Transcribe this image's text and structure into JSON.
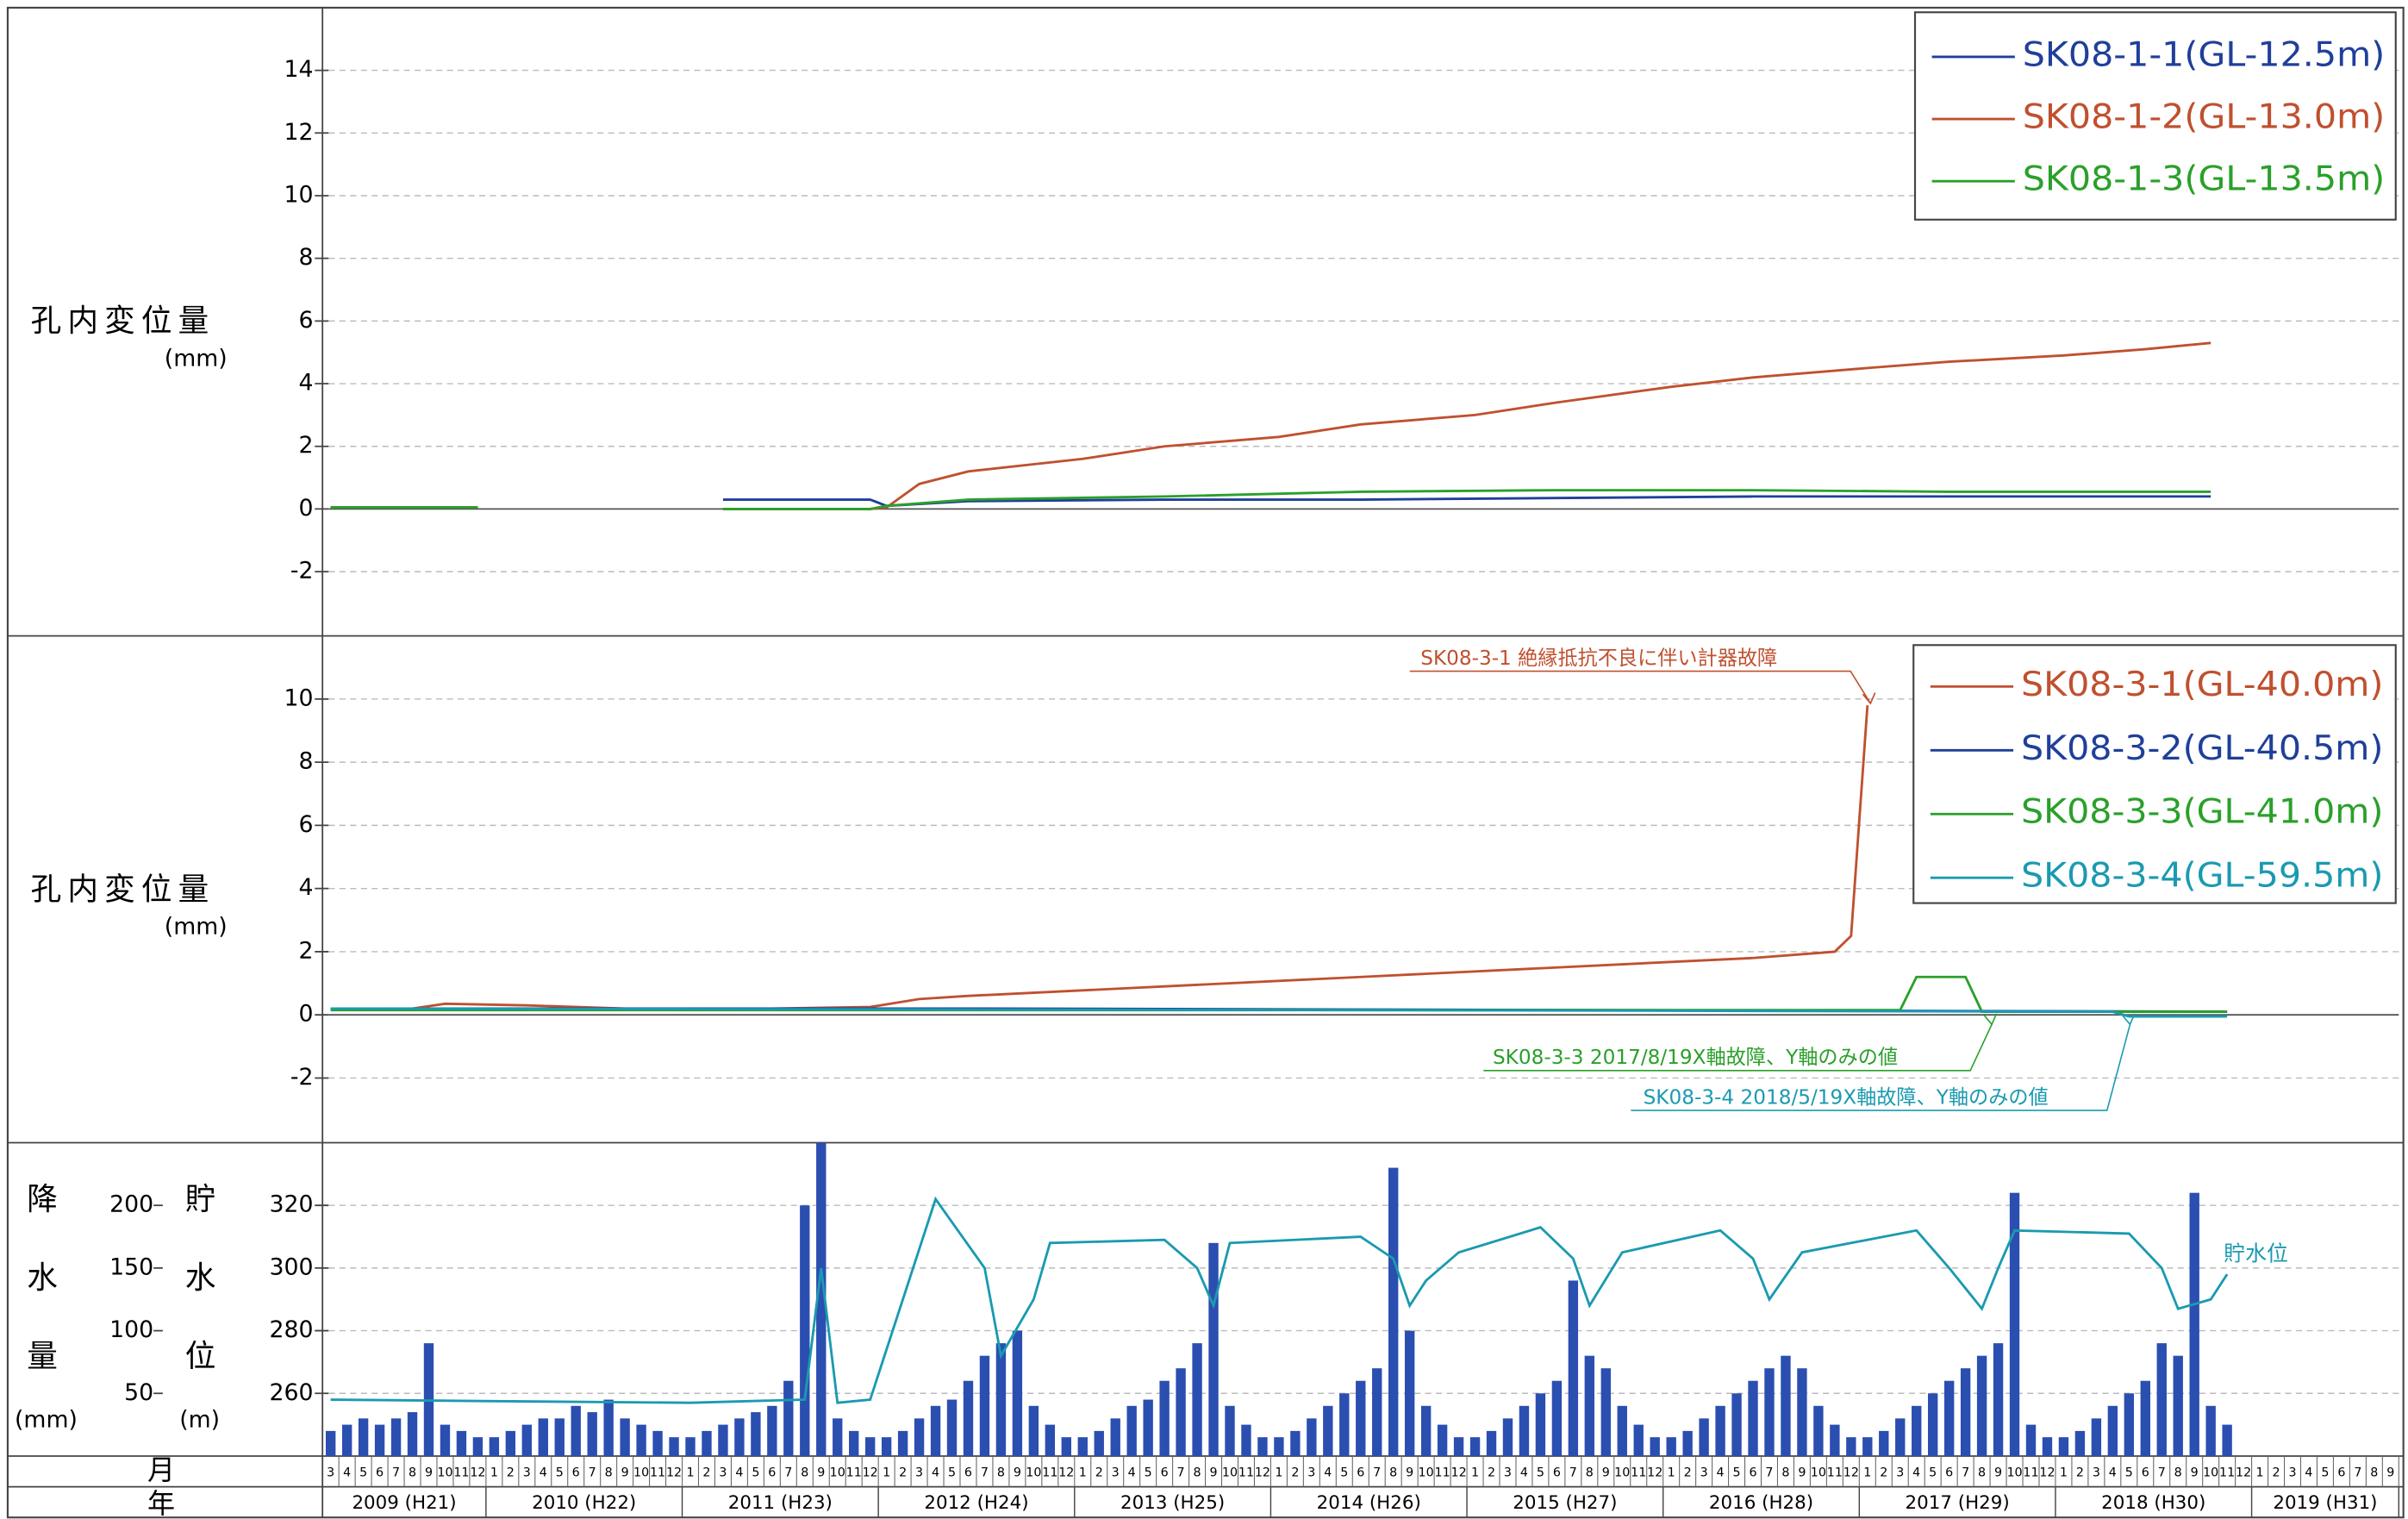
{
  "chart_data": [
    {
      "type": "line",
      "ylabel": "孔内変位量",
      "yunit": "(mm)",
      "ylim": [
        -4,
        16
      ],
      "yticks": [
        -2,
        0,
        2,
        4,
        6,
        8,
        10,
        12,
        14
      ],
      "series": [
        {
          "name": "SK08-1-1(GL-12.5m)",
          "color": "#1f3f9a",
          "x": [
            "2009-03",
            "2009-12",
            "2010-06",
            "2011-03",
            "2011-12",
            "2012-01",
            "2012-06",
            "2013-06",
            "2014-06",
            "2015-06",
            "2016-06",
            "2017-06",
            "2018-10"
          ],
          "values": [
            0.05,
            0.05,
            null,
            0.3,
            0.3,
            0.1,
            0.25,
            0.3,
            0.3,
            0.35,
            0.4,
            0.4,
            0.4
          ]
        },
        {
          "name": "SK08-1-2(GL-13.0m)",
          "color": "#c0502f",
          "x": [
            "2009-03",
            "2009-12",
            "2010-06",
            "2011-03",
            "2011-12",
            "2012-01",
            "2012-03",
            "2012-06",
            "2013-01",
            "2013-06",
            "2014-01",
            "2014-06",
            "2015-01",
            "2015-06",
            "2016-01",
            "2016-06",
            "2017-01",
            "2017-06",
            "2018-01",
            "2018-06",
            "2018-10"
          ],
          "values": [
            0.05,
            0.05,
            null,
            0,
            0,
            0.05,
            0.8,
            1.2,
            1.6,
            2.0,
            2.3,
            2.7,
            3.0,
            3.4,
            3.9,
            4.2,
            4.5,
            4.7,
            4.9,
            5.1,
            5.3
          ]
        },
        {
          "name": "SK08-1-3(GL-13.5m)",
          "color": "#2aa02a",
          "x": [
            "2009-03",
            "2009-12",
            "2010-06",
            "2011-03",
            "2011-12",
            "2012-01",
            "2012-06",
            "2013-06",
            "2014-06",
            "2015-06",
            "2016-06",
            "2017-06",
            "2018-10"
          ],
          "values": [
            0.05,
            0.05,
            null,
            0,
            0,
            0.1,
            0.3,
            0.4,
            0.55,
            0.6,
            0.6,
            0.55,
            0.55
          ]
        }
      ]
    },
    {
      "type": "line",
      "ylabel": "孔内変位量",
      "yunit": "(mm)",
      "ylim": [
        -4,
        12
      ],
      "yticks": [
        -2,
        0,
        2,
        4,
        6,
        8,
        10
      ],
      "series": [
        {
          "name": "SK08-3-1(GL-40.0m)",
          "color": "#c0502f",
          "x": [
            "2009-03",
            "2009-08",
            "2009-10",
            "2010-03",
            "2010-09",
            "2011-06",
            "2011-12",
            "2012-03",
            "2012-06",
            "2013-06",
            "2014-06",
            "2015-06",
            "2016-06",
            "2016-11",
            "2016-12",
            "2017-01"
          ],
          "values": [
            0.2,
            0.2,
            0.35,
            0.3,
            0.2,
            0.2,
            0.25,
            0.5,
            0.6,
            0.9,
            1.2,
            1.5,
            1.8,
            2.0,
            2.5,
            9.8
          ]
        },
        {
          "name": "SK08-3-2(GL-40.5m)",
          "color": "#1f3f9a",
          "x": [
            "2009-03",
            "2012-06",
            "2018-11"
          ],
          "values": [
            0.2,
            0.2,
            0.1
          ]
        },
        {
          "name": "SK08-3-3(GL-41.0m)",
          "color": "#2aa02a",
          "x": [
            "2009-03",
            "2017-03",
            "2017-04",
            "2017-07",
            "2017-08",
            "2018-11"
          ],
          "values": [
            0.15,
            0.15,
            1.2,
            1.2,
            0.1,
            0.1
          ]
        },
        {
          "name": "SK08-3-4(GL-59.5m)",
          "color": "#1a9ab0",
          "x": [
            "2009-03",
            "2014-06",
            "2018-04",
            "2018-05",
            "2018-11"
          ],
          "values": [
            0.2,
            0.15,
            0.1,
            -0.05,
            -0.05
          ]
        }
      ],
      "annotations": [
        {
          "text": "SK08-3-1 絶縁抵抗不良に伴い計器故障",
          "color": "#c0502f"
        },
        {
          "text": "SK08-3-3 2017/8/19X軸故障、Y軸のみの値",
          "color": "#2aa02a"
        },
        {
          "text": "SK08-3-4 2018/5/19X軸故障、Y軸のみの値",
          "color": "#1a9ab0"
        }
      ]
    },
    {
      "type": "bar_line",
      "ylabel": "降水量",
      "yunit": "(mm)",
      "ylim": [
        0,
        250
      ],
      "yticks": [
        50,
        100,
        150,
        200
      ],
      "y2label": "貯水位",
      "y2unit": "(m)",
      "y2lim": [
        240,
        340
      ],
      "y2ticks": [
        260,
        280,
        300,
        320
      ],
      "x_row_label": "月",
      "year_row_label": "年",
      "xlim": [
        "2009-03",
        "2019-09"
      ],
      "categories": [
        3,
        4,
        5,
        6,
        7,
        8,
        9,
        10,
        11,
        12,
        1,
        2,
        3,
        4,
        5,
        6,
        7,
        8,
        9,
        10,
        11,
        12,
        1,
        2,
        3,
        4,
        5,
        6,
        7,
        8,
        9,
        10,
        11,
        12,
        1,
        2,
        3,
        4,
        5,
        6,
        7,
        8,
        9,
        10,
        11,
        12,
        1,
        2,
        3,
        4,
        5,
        6,
        7,
        8,
        9,
        10,
        11,
        12,
        1,
        2,
        3,
        4,
        5,
        6,
        7,
        8,
        9,
        10,
        11,
        12,
        1,
        2,
        3,
        4,
        5,
        6,
        7,
        8,
        9,
        10,
        11,
        12,
        1,
        2,
        3,
        4,
        5,
        6,
        7,
        8,
        9,
        10,
        11,
        12,
        1,
        2,
        3,
        4,
        5,
        6,
        7,
        8,
        9,
        10,
        11,
        12,
        1,
        2,
        3,
        4,
        5,
        6,
        7,
        8,
        9,
        10,
        11,
        12,
        1,
        2,
        3,
        4,
        5,
        6,
        7,
        8,
        9
      ],
      "year_labels": [
        "2009 (H21)",
        "2010 (H22)",
        "2011 (H23)",
        "2012 (H24)",
        "2013 (H25)",
        "2014 (H26)",
        "2015 (H27)",
        "2016 (H28)",
        "2017 (H29)",
        "2018 (H30)",
        "2019 (H31)"
      ],
      "bar_color": "#2a4fb0",
      "values": [
        20,
        25,
        30,
        25,
        30,
        35,
        90,
        25,
        20,
        15,
        15,
        20,
        25,
        30,
        30,
        40,
        35,
        45,
        30,
        25,
        20,
        15,
        15,
        20,
        25,
        30,
        35,
        40,
        60,
        200,
        250,
        30,
        20,
        15,
        15,
        20,
        30,
        40,
        45,
        60,
        80,
        90,
        100,
        40,
        25,
        15,
        15,
        20,
        30,
        40,
        45,
        60,
        70,
        90,
        170,
        40,
        25,
        15,
        15,
        20,
        30,
        40,
        50,
        60,
        70,
        230,
        100,
        40,
        25,
        15,
        15,
        20,
        30,
        40,
        50,
        60,
        140,
        80,
        70,
        40,
        25,
        15,
        15,
        20,
        30,
        40,
        50,
        60,
        70,
        80,
        70,
        40,
        25,
        15,
        15,
        20,
        30,
        40,
        50,
        60,
        70,
        80,
        90,
        210,
        25,
        15,
        15,
        20,
        30,
        40,
        50,
        60,
        90,
        80,
        210,
        40,
        25,
        null,
        null,
        null,
        null,
        null,
        null,
        null,
        null,
        null,
        null
      ],
      "series": [
        {
          "name": "貯水位",
          "color": "#1a9ab0",
          "axis": "y2",
          "x": [
            "2009-03",
            "2010-01",
            "2011-01",
            "2011-08",
            "2011-09",
            "2011-10",
            "2011-12",
            "2012-02",
            "2012-04",
            "2012-07",
            "2012-08",
            "2012-10",
            "2012-11",
            "2013-06",
            "2013-08",
            "2013-09",
            "2013-10",
            "2014-06",
            "2014-08",
            "2014-09",
            "2014-10",
            "2014-12",
            "2015-05",
            "2015-07",
            "2015-08",
            "2015-10",
            "2016-04",
            "2016-06",
            "2016-07",
            "2016-09",
            "2017-04",
            "2017-06",
            "2017-08",
            "2017-09",
            "2017-10",
            "2018-05",
            "2018-07",
            "2018-08",
            "2018-10",
            "2018-11"
          ],
          "values": [
            258,
            257.5,
            257,
            258,
            300,
            257,
            258,
            290,
            322,
            300,
            272,
            290,
            308,
            309,
            300,
            288,
            308,
            310,
            303,
            288,
            296,
            305,
            313,
            303,
            288,
            305,
            312,
            303,
            290,
            305,
            312,
            300,
            287,
            300,
            312,
            311,
            300,
            287,
            290,
            298
          ]
        }
      ]
    }
  ]
}
